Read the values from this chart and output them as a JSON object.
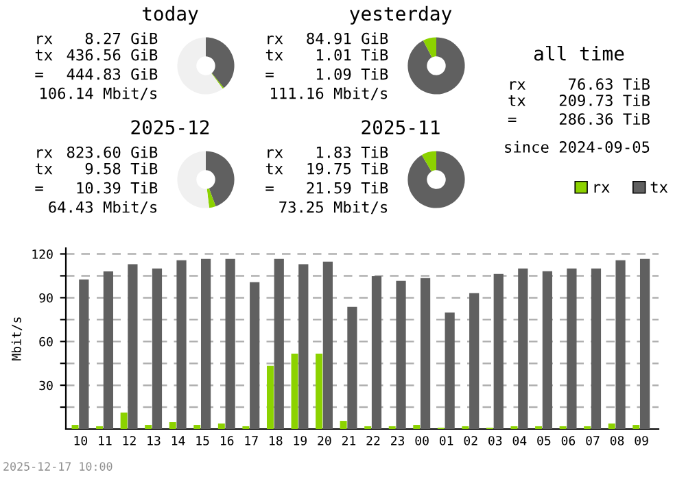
{
  "chart_data": [
    {
      "type": "donut",
      "title": "today",
      "categories": [
        null,
        null,
        null
      ],
      "values": [
        39.11,
        0.74,
        60.15
      ],
      "colors": [
        "#606060",
        "#8cd200",
        "#f0f0f0"
      ],
      "annotations": [
        "rx 8.27 GiB",
        "tx 436.56 GiB",
        "= 444.83 GiB",
        "106.14 Mbit/s"
      ]
    },
    {
      "type": "donut",
      "title": "yesterday",
      "categories": [
        null,
        null
      ],
      "values": [
        92.39,
        7.61
      ],
      "colors": [
        "#606060",
        "#8cd200"
      ],
      "annotations": [
        "rx 84.91 GiB",
        "tx 1.01 TiB",
        "= 1.09 TiB",
        "111.16 Mbit/s"
      ]
    },
    {
      "type": "other",
      "title": "all time",
      "annotations": [
        "rx 76.63 TiB",
        "tx 209.73 TiB",
        "= 286.36 TiB",
        "since 2024-09-05"
      ]
    },
    {
      "type": "donut",
      "title": "2025-12",
      "categories": [
        null,
        null,
        null
      ],
      "values": [
        44.37,
        3.73,
        51.9
      ],
      "colors": [
        "#606060",
        "#8cd200",
        "#f0f0f0"
      ],
      "annotations": [
        "rx 823.60 GiB",
        "tx 9.58 TiB",
        "= 10.39 TiB",
        "64.43 Mbit/s"
      ]
    },
    {
      "type": "donut",
      "title": "2025-11",
      "categories": [
        null,
        null
      ],
      "values": [
        91.52,
        8.48
      ],
      "colors": [
        "#606060",
        "#8cd200"
      ],
      "annotations": [
        "rx 1.83 TiB",
        "tx 19.75 TiB",
        "= 21.59 TiB",
        "73.25 Mbit/s"
      ]
    },
    {
      "type": "bar",
      "ylabel": "Mbit/s",
      "categories": [
        "10",
        "11",
        "12",
        "13",
        "14",
        "15",
        "16",
        "17",
        "18",
        "19",
        "20",
        "21",
        "22",
        "23",
        "00",
        "01",
        "02",
        "03",
        "04",
        "05",
        "06",
        "07",
        "08",
        "09"
      ],
      "series": [
        {
          "name": "rx",
          "color": "#8cd200",
          "values": [
            2.8,
            1.9,
            11.3,
            2.8,
            4.7,
            2.8,
            3.8,
            1.9,
            43.3,
            51.7,
            51.7,
            5.6,
            1.9,
            1.9,
            2.8,
            0.9,
            1.9,
            0.9,
            1.9,
            1.9,
            1.9,
            1.9,
            3.8,
            2.8
          ]
        },
        {
          "name": "tx",
          "color": "#606060",
          "values": [
            102.5,
            108,
            113,
            110,
            115.7,
            116.6,
            116.6,
            100.6,
            116.6,
            113,
            114.7,
            83.7,
            104.7,
            101.6,
            103.4,
            79.9,
            93.1,
            106.3,
            110,
            108.2,
            110,
            110,
            115.7,
            116.6
          ]
        }
      ],
      "ylim": [
        0,
        124
      ],
      "yticks": [
        {
          "value": 15,
          "label": null
        },
        30,
        {
          "value": 45,
          "label": null
        },
        60,
        {
          "value": 75,
          "label": null
        },
        90,
        {
          "value": 105,
          "label": null
        },
        120
      ],
      "grid": "y",
      "legend": "top right",
      "annotations": [
        "2025-12-17 10:00"
      ]
    }
  ]
}
